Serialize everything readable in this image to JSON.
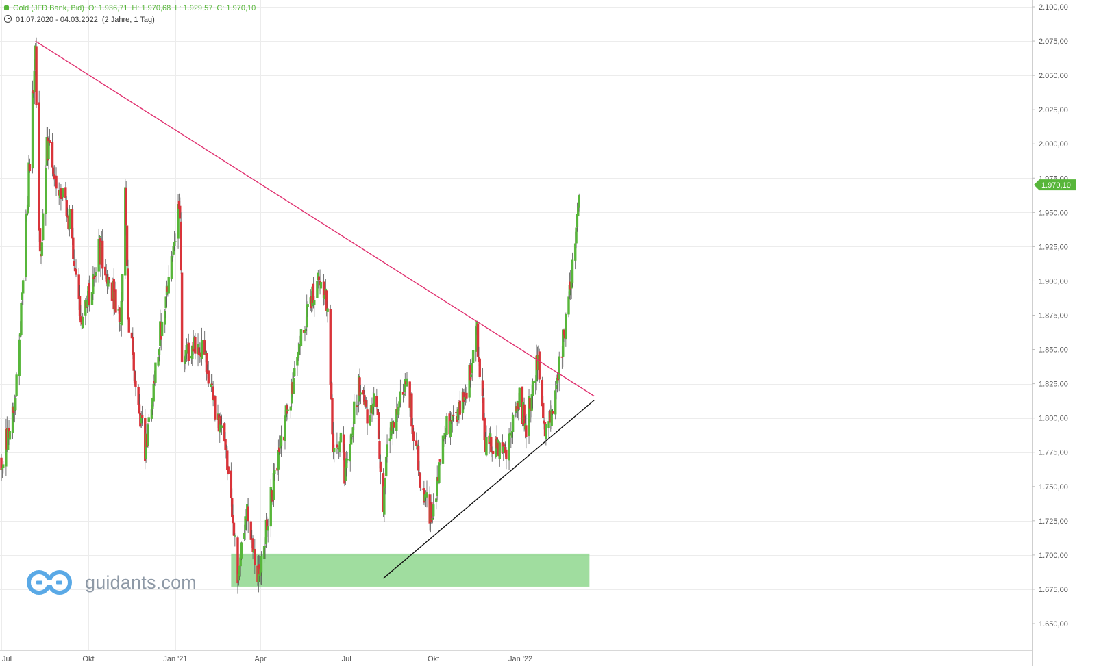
{
  "header": {
    "instrument": "Gold (JFD Bank, Bid)",
    "open": "O: 1.936,71",
    "high": "H: 1.970,68",
    "low": "L: 1.929,57",
    "close": "C: 1.970,10",
    "period": "01.07.2020 - 04.03.2022",
    "interval": "(2 Jahre, 1 Tag)"
  },
  "brand": {
    "name": "guidants.com"
  },
  "chart_data": {
    "type": "candlestick",
    "y_axis": {
      "min": 1650,
      "max": 2100,
      "position": "right",
      "ticks": [
        1650,
        1675,
        1700,
        1725,
        1750,
        1775,
        1800,
        1825,
        1850,
        1875,
        1900,
        1925,
        1950,
        1975,
        2000,
        2025,
        2050,
        2075,
        2100
      ],
      "tick_labels": [
        "1.650,00",
        "1.675,00",
        "1.700,00",
        "1.725,00",
        "1.750,00",
        "1.775,00",
        "1.800,00",
        "1.825,00",
        "1.850,00",
        "1.875,00",
        "1.900,00",
        "1.925,00",
        "1.950,00",
        "1.975,00",
        "2.000,00",
        "2.025,00",
        "2.050,00",
        "2.075,00",
        "2.100,00"
      ]
    },
    "x_axis": {
      "range": [
        "2020-07-01",
        "2022-03-04"
      ],
      "ticks": [
        {
          "date": "2020-07-01",
          "label": "Jul"
        },
        {
          "date": "2020-10-01",
          "label": "Okt"
        },
        {
          "date": "2021-01-01",
          "label": "Jan '21"
        },
        {
          "date": "2021-04-01",
          "label": "Apr"
        },
        {
          "date": "2021-07-01",
          "label": "Jul"
        },
        {
          "date": "2021-10-01",
          "label": "Okt"
        },
        {
          "date": "2022-01-01",
          "label": "Jan '22"
        }
      ]
    },
    "grid": true,
    "up_color": "#57b63a",
    "down_color": "#d9343a",
    "last_price": {
      "value": 1970.1,
      "label": "1.970,10"
    },
    "price_path": [
      {
        "date": "2020-07-01",
        "value": 1770
      },
      {
        "date": "2020-07-15",
        "value": 1805
      },
      {
        "date": "2020-07-24",
        "value": 1900
      },
      {
        "date": "2020-08-06",
        "value": 2067
      },
      {
        "date": "2020-08-11",
        "value": 1912
      },
      {
        "date": "2020-08-18",
        "value": 2000
      },
      {
        "date": "2020-09-01",
        "value": 1968
      },
      {
        "date": "2020-09-11",
        "value": 1945
      },
      {
        "date": "2020-09-24",
        "value": 1862
      },
      {
        "date": "2020-10-12",
        "value": 1925
      },
      {
        "date": "2020-10-22",
        "value": 1905
      },
      {
        "date": "2020-11-04",
        "value": 1868
      },
      {
        "date": "2020-11-09",
        "value": 1962
      },
      {
        "date": "2020-11-12",
        "value": 1872
      },
      {
        "date": "2020-11-24",
        "value": 1808
      },
      {
        "date": "2020-11-30",
        "value": 1776
      },
      {
        "date": "2020-12-16",
        "value": 1862
      },
      {
        "date": "2021-01-06",
        "value": 1955
      },
      {
        "date": "2021-01-08",
        "value": 1845
      },
      {
        "date": "2021-01-26",
        "value": 1855
      },
      {
        "date": "2021-02-04",
        "value": 1835
      },
      {
        "date": "2021-02-16",
        "value": 1796
      },
      {
        "date": "2021-02-25",
        "value": 1770
      },
      {
        "date": "2021-03-02",
        "value": 1728
      },
      {
        "date": "2021-03-08",
        "value": 1685
      },
      {
        "date": "2021-03-18",
        "value": 1735
      },
      {
        "date": "2021-03-30",
        "value": 1685
      },
      {
        "date": "2021-04-13",
        "value": 1745
      },
      {
        "date": "2021-05-07",
        "value": 1832
      },
      {
        "date": "2021-05-21",
        "value": 1880
      },
      {
        "date": "2021-06-01",
        "value": 1905
      },
      {
        "date": "2021-06-11",
        "value": 1880
      },
      {
        "date": "2021-06-17",
        "value": 1775
      },
      {
        "date": "2021-06-25",
        "value": 1780
      },
      {
        "date": "2021-06-29",
        "value": 1762
      },
      {
        "date": "2021-07-14",
        "value": 1822
      },
      {
        "date": "2021-07-22",
        "value": 1805
      },
      {
        "date": "2021-08-02",
        "value": 1812
      },
      {
        "date": "2021-08-06",
        "value": 1765
      },
      {
        "date": "2021-08-09",
        "value": 1728
      },
      {
        "date": "2021-08-13",
        "value": 1780
      },
      {
        "date": "2021-09-03",
        "value": 1828
      },
      {
        "date": "2021-09-16",
        "value": 1760
      },
      {
        "date": "2021-09-29",
        "value": 1728
      },
      {
        "date": "2021-10-14",
        "value": 1795
      },
      {
        "date": "2021-10-27",
        "value": 1800
      },
      {
        "date": "2021-11-05",
        "value": 1818
      },
      {
        "date": "2021-11-16",
        "value": 1862
      },
      {
        "date": "2021-11-22",
        "value": 1808
      },
      {
        "date": "2021-11-24",
        "value": 1785
      },
      {
        "date": "2021-12-15",
        "value": 1770
      },
      {
        "date": "2021-12-30",
        "value": 1815
      },
      {
        "date": "2022-01-07",
        "value": 1795
      },
      {
        "date": "2022-01-20",
        "value": 1843
      },
      {
        "date": "2022-01-28",
        "value": 1788
      },
      {
        "date": "2022-02-04",
        "value": 1808
      },
      {
        "date": "2022-02-15",
        "value": 1855
      },
      {
        "date": "2022-02-24",
        "value": 1905
      },
      {
        "date": "2022-03-01",
        "value": 1945
      },
      {
        "date": "2022-03-04",
        "value": 1970
      }
    ],
    "annotations": [
      {
        "type": "trendline",
        "color": "#e0306f",
        "from": {
          "date": "2020-08-06",
          "value": 2075
        },
        "to": {
          "date": "2022-03-20",
          "value": 1816
        }
      },
      {
        "type": "trendline",
        "color": "#111111",
        "from": {
          "date": "2021-08-09",
          "value": 1683
        },
        "to": {
          "date": "2022-03-20",
          "value": 1813
        }
      },
      {
        "type": "zone",
        "color": "#7cd07a",
        "from": "2021-03-01",
        "to": "2022-03-15",
        "low": 1677,
        "high": 1701
      }
    ]
  }
}
